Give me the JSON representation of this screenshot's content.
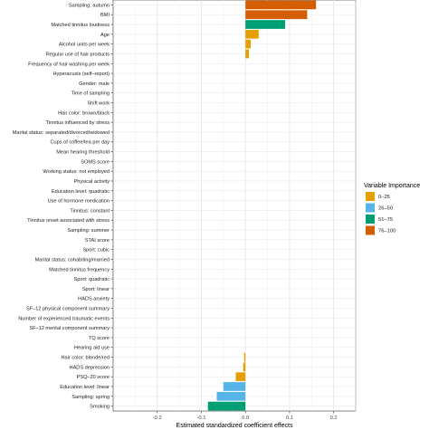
{
  "chart_data": {
    "type": "bar",
    "orientation": "horizontal",
    "xlabel": "Estimated standardized coefficient effects",
    "ylabel": "",
    "xlim": [
      -0.3,
      0.25
    ],
    "xticks": [
      -0.2,
      -0.1,
      0.0,
      0.1,
      0.2
    ],
    "xtick_labels": [
      "-0.2",
      "-0.1",
      "0.0",
      "0.1",
      "0.2"
    ],
    "grid": true,
    "legend": {
      "title": "Variable Importance",
      "position": "right",
      "items": [
        {
          "label": "0–25",
          "color": "#E69F00"
        },
        {
          "label": "26–50",
          "color": "#56B4E9"
        },
        {
          "label": "51–75",
          "color": "#009E73"
        },
        {
          "label": "76–100",
          "color": "#D55E00"
        }
      ]
    },
    "categories": [
      "Sampling: autumn",
      "BMI",
      "Matched tinnitus loudness",
      "Age",
      "Alcohol units per week",
      "Regular use of hair products",
      "Frequency of hair washing per week",
      "Hyperacusis (self–report)",
      "Gender: male",
      "Time of sampling",
      "Shift work",
      "Hair color: brown/black",
      "Tinnitus influenced by stress",
      "Marital status: separated/divorced/widowed",
      "Cups of coffee/tea per day",
      "Mean hearing threshold",
      "SOMS score",
      "Working status: not employed",
      "Physical activity",
      "Education level: quadratic",
      "Use of hormone medication",
      "Tinnitus: constant",
      "Tinnitus onset associated with stress",
      "Sampling: summer",
      "STAI score",
      "Sport: cubic",
      "Marital status: cohabiting/married",
      "Matched tinnitus frequency",
      "Sport: quadratic",
      "Sport: linear",
      "HADS anxiety",
      "SF–12 physical component summary",
      "Number of experienced traumatic events",
      "SF–12 mental component summary",
      "TQ score",
      "Hearing aid use",
      "Hair color: blonde/red",
      "HADS depression",
      "PSQ–20 score",
      "Education level: linear",
      "Sampling: spring",
      "Smoking"
    ],
    "values": [
      0.16,
      0.14,
      0.09,
      0.03,
      0.012,
      0.008,
      0,
      0,
      0,
      0,
      0,
      0,
      0,
      0,
      0,
      0,
      0,
      0,
      0,
      0,
      0,
      0,
      0,
      0,
      0,
      0,
      0,
      0,
      0,
      0,
      0,
      0,
      0,
      0,
      0,
      0,
      -0.003,
      -0.005,
      -0.022,
      -0.05,
      -0.065,
      -0.085
    ],
    "importance_group": [
      4,
      4,
      3,
      1,
      1,
      1,
      0,
      0,
      0,
      0,
      0,
      0,
      0,
      0,
      0,
      0,
      0,
      0,
      0,
      0,
      0,
      0,
      0,
      0,
      0,
      0,
      0,
      0,
      0,
      0,
      0,
      0,
      0,
      0,
      0,
      0,
      1,
      1,
      1,
      2,
      2,
      3
    ]
  }
}
